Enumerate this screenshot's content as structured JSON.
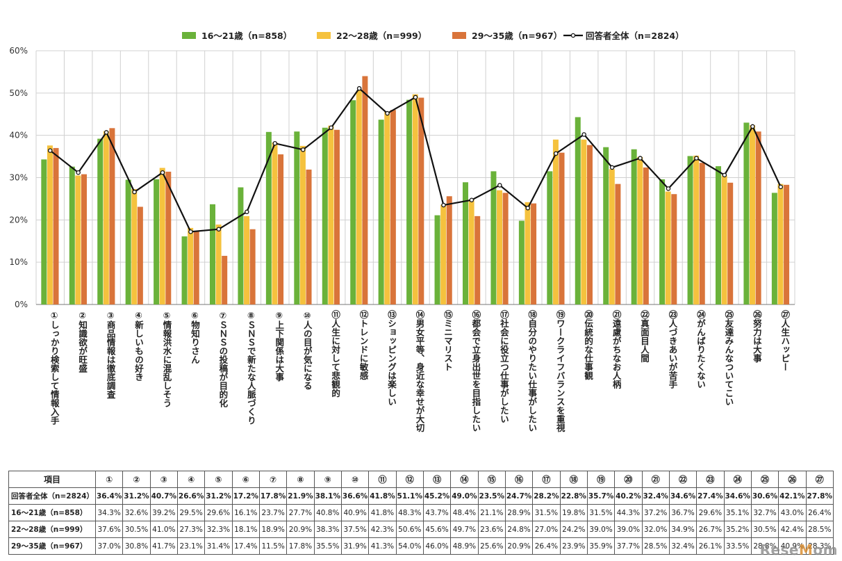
{
  "chart_data": {
    "type": "bar",
    "title": "",
    "ylabel": "",
    "xlabel": "",
    "ylim": [
      0,
      60
    ],
    "yticks": [
      "0%",
      "10%",
      "20%",
      "30%",
      "40%",
      "50%",
      "60%"
    ],
    "grid": true,
    "legend_position": "top-center",
    "categories": [
      {
        "num": "①",
        "label": "しっかり検索して情報入手"
      },
      {
        "num": "②",
        "label": "知識欲が旺盛"
      },
      {
        "num": "③",
        "label": "商品情報は徹底調査"
      },
      {
        "num": "④",
        "label": "新しいもの好き"
      },
      {
        "num": "⑤",
        "label": "情報洪水に混乱しそう"
      },
      {
        "num": "⑥",
        "label": "物知りさん"
      },
      {
        "num": "⑦",
        "label": "ＳＮＳの投稿が目的化"
      },
      {
        "num": "⑧",
        "label": "ＳＮＳで新たな人脈づくり"
      },
      {
        "num": "⑨",
        "label": "上下関係は大事"
      },
      {
        "num": "⑩",
        "label": "人の目が気になる"
      },
      {
        "num": "⑪",
        "label": "人生に対して悲観的"
      },
      {
        "num": "⑫",
        "label": "トレンドに敏感"
      },
      {
        "num": "⑬",
        "label": "ショッピングは楽しい"
      },
      {
        "num": "⑭",
        "label": "男女平等、身近な幸せが大切"
      },
      {
        "num": "⑮",
        "label": "ミニマリスト"
      },
      {
        "num": "⑯",
        "label": "都会で立身出世を目指したい"
      },
      {
        "num": "⑰",
        "label": "社会に役立つ仕事がしたい"
      },
      {
        "num": "⑱",
        "label": "自分のやりたい仕事がしたい"
      },
      {
        "num": "⑲",
        "label": "ワークライフバランスを重視"
      },
      {
        "num": "⑳",
        "label": "伝統的な仕事観"
      },
      {
        "num": "㉑",
        "label": "遠慮がちなお人柄"
      },
      {
        "num": "㉒",
        "label": "真面目人間"
      },
      {
        "num": "㉓",
        "label": "人づきあいが苦手"
      },
      {
        "num": "㉔",
        "label": "がんばりたくない"
      },
      {
        "num": "㉕",
        "label": "友達みんなついてこい"
      },
      {
        "num": "㉖",
        "label": "努力は大事"
      },
      {
        "num": "㉗",
        "label": "人生ハッピー"
      }
    ],
    "series": [
      {
        "name": "16～21歳（n=858）",
        "kind": "bar",
        "color": "#6ab23a",
        "values": [
          34.3,
          32.6,
          39.2,
          29.5,
          29.6,
          16.1,
          23.7,
          27.7,
          40.8,
          40.9,
          41.8,
          48.3,
          43.7,
          48.4,
          21.1,
          28.9,
          31.5,
          19.8,
          31.5,
          44.3,
          37.2,
          36.7,
          29.6,
          35.1,
          32.7,
          43.0,
          26.4
        ]
      },
      {
        "name": "22～28歳（n=999）",
        "kind": "bar",
        "color": "#f5c23e",
        "values": [
          37.6,
          30.5,
          41.0,
          27.3,
          32.3,
          18.1,
          18.9,
          20.9,
          38.3,
          37.5,
          42.3,
          50.6,
          45.6,
          49.7,
          23.6,
          24.8,
          27.0,
          24.2,
          39.0,
          39.0,
          32.0,
          34.9,
          26.7,
          35.2,
          30.5,
          42.4,
          28.5
        ]
      },
      {
        "name": "29～35歳（n=967）",
        "kind": "bar",
        "color": "#d9743a",
        "values": [
          37.0,
          30.8,
          41.7,
          23.1,
          31.4,
          17.4,
          11.5,
          17.8,
          35.5,
          31.9,
          41.3,
          54.0,
          46.0,
          48.9,
          25.6,
          20.9,
          26.4,
          23.9,
          35.9,
          37.7,
          28.5,
          32.4,
          26.1,
          33.5,
          28.8,
          40.9,
          28.3
        ]
      },
      {
        "name": "回答者全体（n=2824）",
        "kind": "line",
        "color": "#111111",
        "values": [
          36.4,
          31.2,
          40.7,
          26.6,
          31.2,
          17.2,
          17.8,
          21.9,
          38.1,
          36.6,
          41.8,
          51.1,
          45.2,
          49.0,
          23.5,
          24.7,
          28.2,
          22.8,
          35.7,
          40.2,
          32.4,
          34.6,
          27.4,
          34.6,
          30.6,
          42.1,
          27.8
        ]
      }
    ]
  },
  "table": {
    "header_label": "項目",
    "columns": [
      "①",
      "②",
      "③",
      "④",
      "⑤",
      "⑥",
      "⑦",
      "⑧",
      "⑨",
      "⑩",
      "⑪",
      "⑫",
      "⑬",
      "⑭",
      "⑮",
      "⑯",
      "⑰",
      "⑱",
      "⑲",
      "⑳",
      "㉑",
      "㉒",
      "㉓",
      "㉔",
      "㉕",
      "㉖",
      "㉗"
    ],
    "rows": [
      {
        "label": "回答者全体（n=2824）",
        "bold": true,
        "cells": [
          "36.4%",
          "31.2%",
          "40.7%",
          "26.6%",
          "31.2%",
          "17.2%",
          "17.8%",
          "21.9%",
          "38.1%",
          "36.6%",
          "41.8%",
          "51.1%",
          "45.2%",
          "49.0%",
          "23.5%",
          "24.7%",
          "28.2%",
          "22.8%",
          "35.7%",
          "40.2%",
          "32.4%",
          "34.6%",
          "27.4%",
          "34.6%",
          "30.6%",
          "42.1%",
          "27.8%"
        ]
      },
      {
        "label": "16～21歳（n=858）",
        "bold": false,
        "cells": [
          "34.3%",
          "32.6%",
          "39.2%",
          "29.5%",
          "29.6%",
          "16.1%",
          "23.7%",
          "27.7%",
          "40.8%",
          "40.9%",
          "41.8%",
          "48.3%",
          "43.7%",
          "48.4%",
          "21.1%",
          "28.9%",
          "31.5%",
          "19.8%",
          "31.5%",
          "44.3%",
          "37.2%",
          "36.7%",
          "29.6%",
          "35.1%",
          "32.7%",
          "43.0%",
          "26.4%"
        ]
      },
      {
        "label": "22～28歳（n=999）",
        "bold": false,
        "cells": [
          "37.6%",
          "30.5%",
          "41.0%",
          "27.3%",
          "32.3%",
          "18.1%",
          "18.9%",
          "20.9%",
          "38.3%",
          "37.5%",
          "42.3%",
          "50.6%",
          "45.6%",
          "49.7%",
          "23.6%",
          "24.8%",
          "27.0%",
          "24.2%",
          "39.0%",
          "39.0%",
          "32.0%",
          "34.9%",
          "26.7%",
          "35.2%",
          "30.5%",
          "42.4%",
          "28.5%"
        ]
      },
      {
        "label": "29～35歳（n=967）",
        "bold": false,
        "cells": [
          "37.0%",
          "30.8%",
          "41.7%",
          "23.1%",
          "31.4%",
          "17.4%",
          "11.5%",
          "17.8%",
          "35.5%",
          "31.9%",
          "41.3%",
          "54.0%",
          "46.0%",
          "48.9%",
          "25.6%",
          "20.9%",
          "26.4%",
          "23.9%",
          "35.9%",
          "37.7%",
          "28.5%",
          "32.4%",
          "26.1%",
          "33.5%",
          "28.8%",
          "40.9%",
          "28.3%"
        ]
      }
    ]
  },
  "watermark": {
    "prefix": "Rese",
    "accent": "M",
    "suffix": "om"
  }
}
